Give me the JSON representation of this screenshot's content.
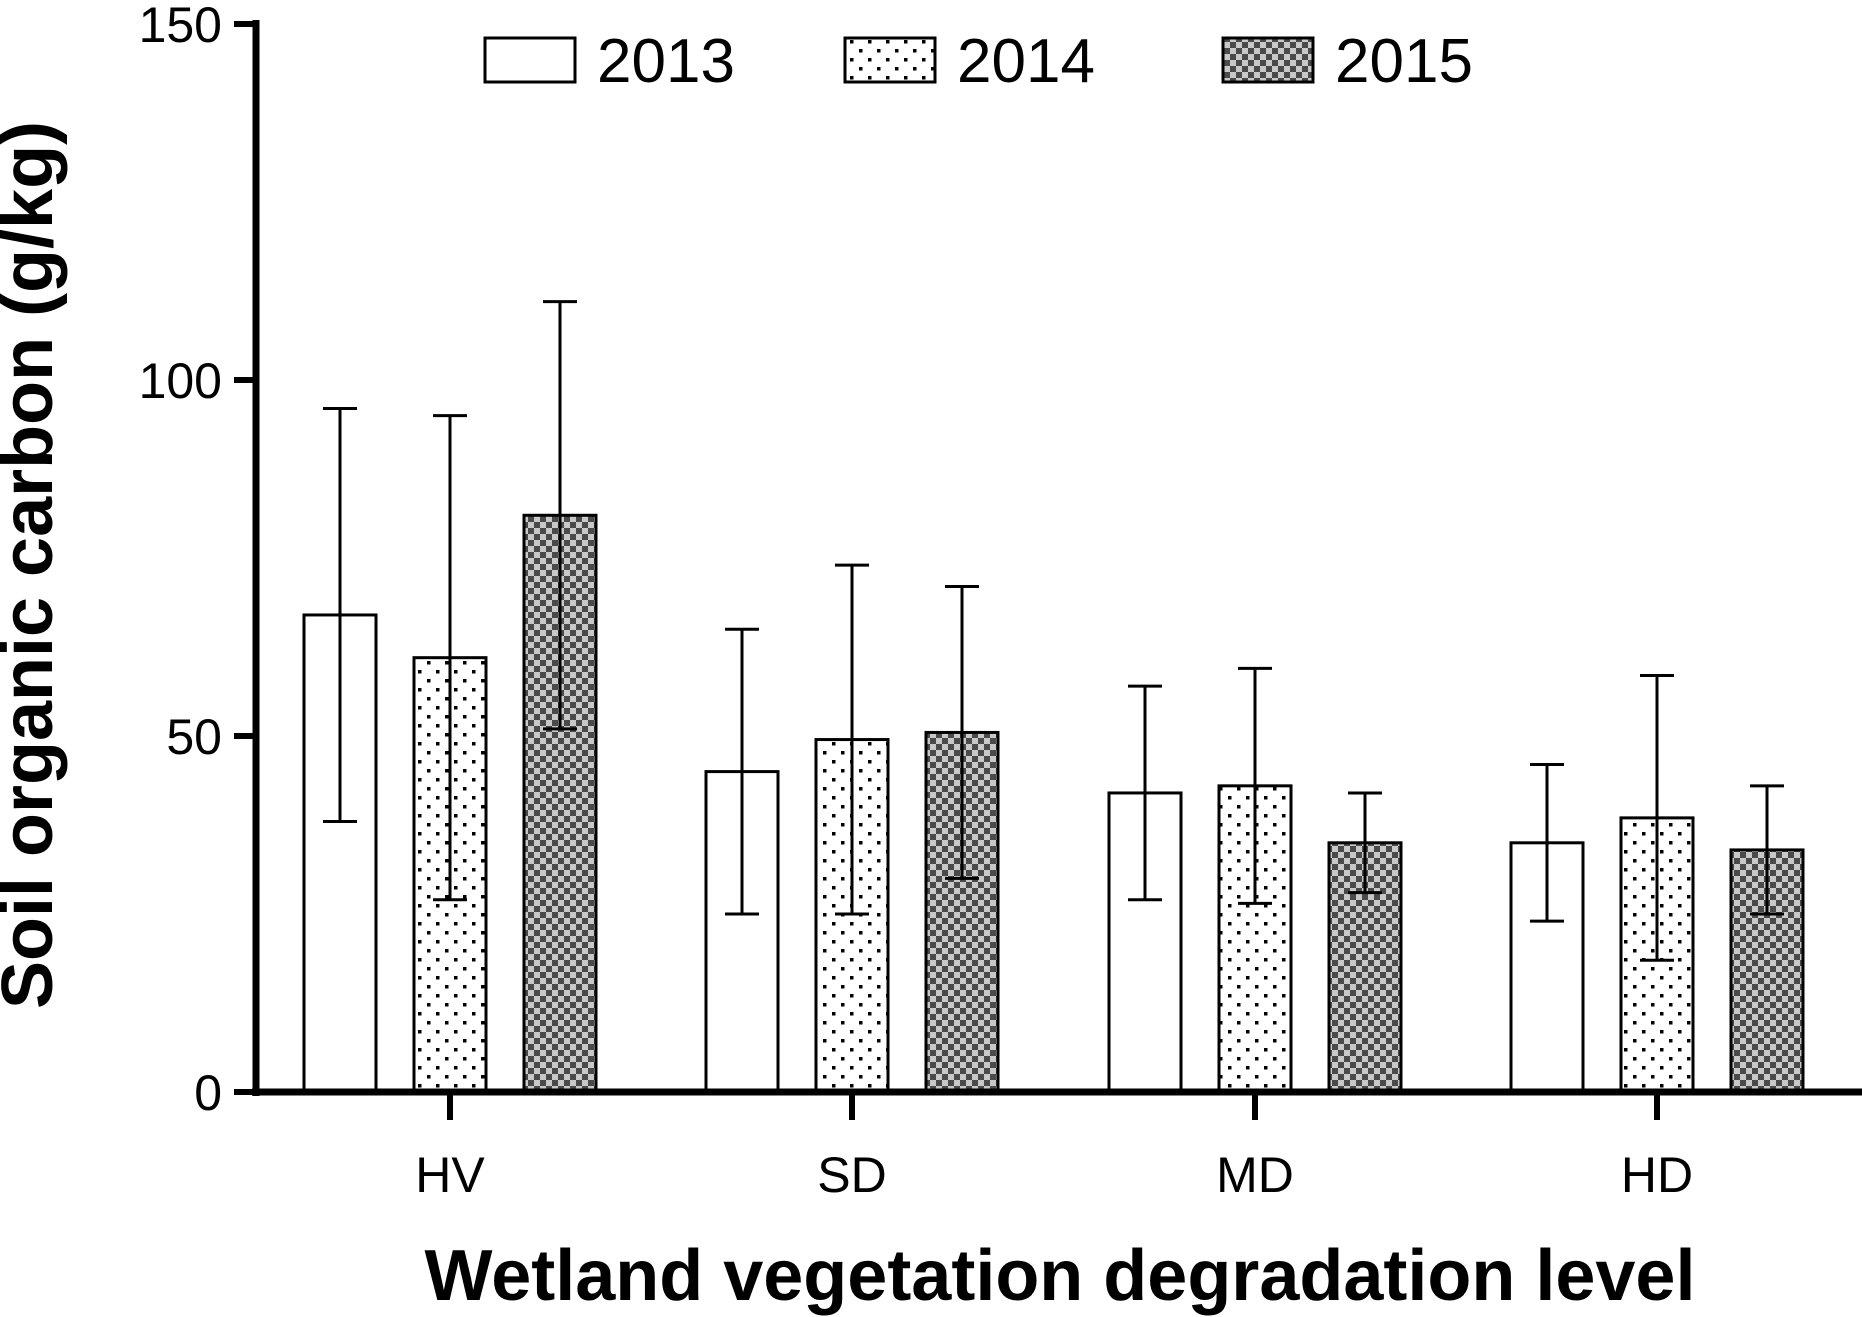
{
  "chart_data": {
    "type": "bar",
    "title": "",
    "xlabel": "Wetland vegetation degradation level",
    "ylabel": "Soil organic carbon (g/kg)",
    "ylim": [
      0,
      150
    ],
    "yticks": [
      0,
      50,
      100,
      150
    ],
    "categories": [
      "HV",
      "SD",
      "MD",
      "HD"
    ],
    "legend_position": "top",
    "grid": false,
    "series": [
      {
        "name": "2013",
        "pattern": "solid-white",
        "values": [
          67,
          45,
          42,
          35
        ],
        "error": [
          29,
          20,
          15,
          11
        ]
      },
      {
        "name": "2014",
        "pattern": "dotted",
        "values": [
          61,
          49.5,
          43,
          38.5
        ],
        "error": [
          34,
          24.5,
          16.5,
          20
        ]
      },
      {
        "name": "2015",
        "pattern": "checker",
        "values": [
          81,
          50.5,
          35,
          34
        ],
        "error": [
          30,
          20.5,
          7,
          9
        ]
      }
    ]
  }
}
